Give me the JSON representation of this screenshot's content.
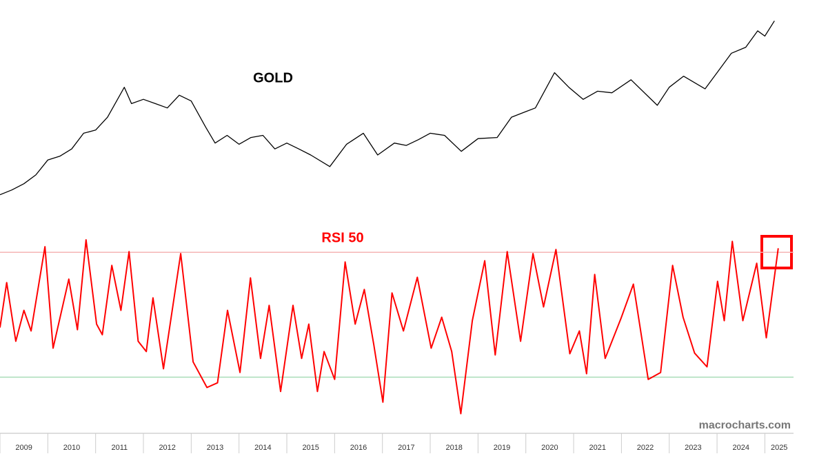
{
  "chart_data": [
    {
      "type": "line",
      "title": "GOLD",
      "color": "#000000",
      "log": true,
      "ylim": [
        800,
        3100
      ],
      "xlim": [
        2009,
        2025.6
      ],
      "x": [
        2009.0,
        2009.25,
        2009.5,
        2009.75,
        2010.0,
        2010.25,
        2010.5,
        2010.75,
        2011.0,
        2011.25,
        2011.6,
        2011.75,
        2012.0,
        2012.25,
        2012.5,
        2012.75,
        2013.0,
        2013.3,
        2013.5,
        2013.75,
        2014.0,
        2014.25,
        2014.5,
        2014.75,
        2015.0,
        2015.25,
        2015.5,
        2015.9,
        2016.25,
        2016.6,
        2016.9,
        2017.25,
        2017.5,
        2017.75,
        2018.0,
        2018.3,
        2018.65,
        2019.0,
        2019.4,
        2019.7,
        2020.0,
        2020.2,
        2020.6,
        2020.9,
        2021.2,
        2021.5,
        2021.8,
        2022.2,
        2022.75,
        2023.0,
        2023.3,
        2023.75,
        2024.0,
        2024.3,
        2024.6,
        2024.85,
        2025.0,
        2025.2
      ],
      "values": [
        870,
        900,
        940,
        1000,
        1110,
        1140,
        1200,
        1340,
        1370,
        1500,
        1850,
        1650,
        1700,
        1650,
        1600,
        1750,
        1680,
        1400,
        1250,
        1320,
        1240,
        1300,
        1320,
        1200,
        1250,
        1200,
        1150,
        1060,
        1240,
        1340,
        1150,
        1250,
        1230,
        1280,
        1340,
        1320,
        1180,
        1290,
        1300,
        1500,
        1560,
        1600,
        2050,
        1850,
        1700,
        1800,
        1780,
        1950,
        1630,
        1850,
        2000,
        1830,
        2050,
        2350,
        2450,
        2750,
        2650,
        2950
      ]
    },
    {
      "type": "line",
      "title": "RSI 50",
      "color": "#ff0000",
      "ylim": [
        14,
        78
      ],
      "xlim": [
        2009,
        2025.6
      ],
      "reference_lines": [
        {
          "value": 70,
          "color": "#f4b4b4"
        },
        {
          "value": 30,
          "color": "#a8dcb8"
        }
      ],
      "xticks": [
        {
          "value": 2009,
          "label": "2009"
        },
        {
          "value": 2010,
          "label": "2010"
        },
        {
          "value": 2011,
          "label": "2011"
        },
        {
          "value": 2012,
          "label": "2012"
        },
        {
          "value": 2013,
          "label": "2013"
        },
        {
          "value": 2014,
          "label": "2014"
        },
        {
          "value": 2015,
          "label": "2015"
        },
        {
          "value": 2016,
          "label": "2016"
        },
        {
          "value": 2017,
          "label": "2017"
        },
        {
          "value": 2018,
          "label": "2018"
        },
        {
          "value": 2019,
          "label": "2019"
        },
        {
          "value": 2020,
          "label": "2020"
        },
        {
          "value": 2021,
          "label": "2021"
        },
        {
          "value": 2022,
          "label": "2022"
        },
        {
          "value": 2023,
          "label": "2023"
        },
        {
          "value": 2024,
          "label": "2024"
        },
        {
          "value": 2025,
          "label": "2025"
        }
      ],
      "x": [
        2009.0,
        2009.14,
        2009.33,
        2009.5,
        2009.65,
        2009.94,
        2010.11,
        2010.44,
        2010.62,
        2010.8,
        2011.02,
        2011.14,
        2011.34,
        2011.53,
        2011.7,
        2011.89,
        2012.06,
        2012.2,
        2012.42,
        2012.78,
        2013.04,
        2013.33,
        2013.55,
        2013.76,
        2014.02,
        2014.24,
        2014.45,
        2014.63,
        2014.87,
        2015.13,
        2015.31,
        2015.46,
        2015.64,
        2015.78,
        2016.0,
        2016.22,
        2016.43,
        2016.62,
        2016.82,
        2017.01,
        2017.2,
        2017.44,
        2017.73,
        2018.02,
        2018.24,
        2018.45,
        2018.64,
        2018.88,
        2019.14,
        2019.36,
        2019.61,
        2019.89,
        2020.15,
        2020.37,
        2020.63,
        2020.92,
        2021.12,
        2021.27,
        2021.44,
        2021.66,
        2021.99,
        2022.25,
        2022.56,
        2022.82,
        2023.07,
        2023.29,
        2023.53,
        2023.79,
        2024.01,
        2024.15,
        2024.32,
        2024.54,
        2024.83,
        2025.03,
        2025.28
      ],
      "values": [
        45.9,
        60.3,
        41.5,
        51.4,
        44.8,
        71.8,
        39.3,
        61.4,
        45.2,
        74.0,
        47.0,
        43.6,
        65.8,
        51.4,
        70.2,
        41.5,
        38.2,
        55.4,
        32.7,
        69.6,
        34.9,
        26.7,
        28.2,
        51.4,
        31.5,
        61.8,
        36.0,
        53.0,
        25.4,
        53.0,
        36.0,
        47.0,
        25.4,
        38.2,
        29.3,
        66.9,
        47.0,
        58.1,
        40.4,
        22.0,
        57.0,
        44.8,
        62.0,
        39.3,
        49.2,
        38.2,
        18.3,
        48.1,
        67.3,
        37.1,
        70.2,
        41.5,
        69.6,
        52.5,
        70.9,
        37.5,
        44.8,
        31.1,
        62.9,
        36.0,
        48.8,
        59.8,
        29.3,
        31.5,
        65.8,
        49.2,
        37.7,
        33.3,
        60.7,
        48.1,
        73.5,
        48.1,
        66.5,
        42.6,
        71.3
      ]
    }
  ],
  "watermark": "macrocharts.com"
}
